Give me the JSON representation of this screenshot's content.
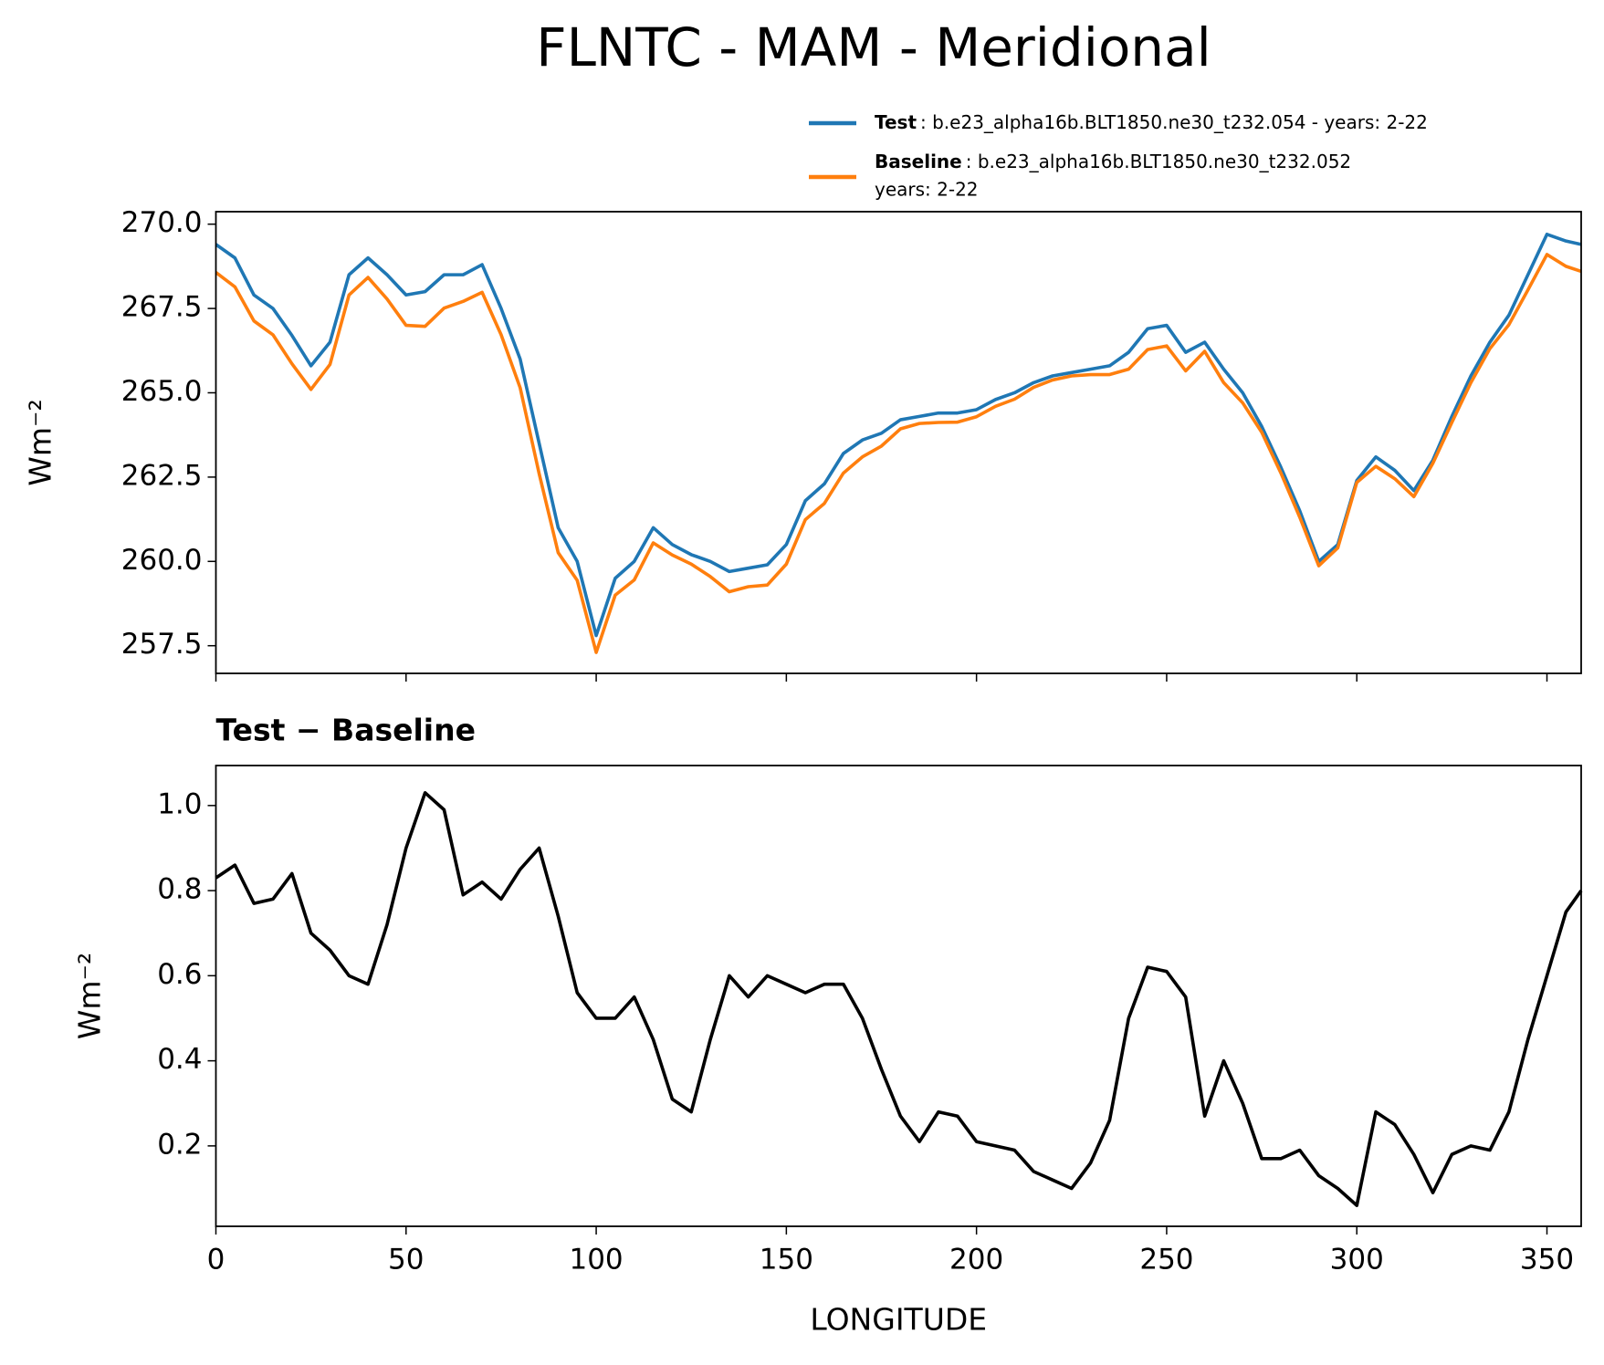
{
  "chart_data": [
    {
      "type": "line",
      "title": "FLNTC - MAM - Meridional",
      "ylabel": "Wm⁻²",
      "x": [
        0,
        5,
        10,
        15,
        20,
        25,
        30,
        35,
        40,
        45,
        50,
        55,
        60,
        65,
        70,
        75,
        80,
        85,
        90,
        95,
        100,
        105,
        110,
        115,
        120,
        125,
        130,
        135,
        140,
        145,
        150,
        155,
        160,
        165,
        170,
        175,
        180,
        185,
        190,
        195,
        200,
        205,
        210,
        215,
        220,
        225,
        230,
        235,
        240,
        245,
        250,
        255,
        260,
        265,
        270,
        275,
        280,
        285,
        290,
        295,
        300,
        305,
        310,
        315,
        320,
        325,
        330,
        335,
        340,
        345,
        350,
        355,
        359
      ],
      "xlim": [
        0,
        359
      ],
      "ylim": [
        256.68,
        270.37
      ],
      "yticks": [
        257.5,
        {
          "value": 260,
          "label": "260.0"
        },
        262.5,
        {
          "value": 265,
          "label": "265.0"
        },
        267.5,
        {
          "value": 270,
          "label": "270.0"
        }
      ],
      "series": [
        {
          "name": "Test",
          "detail": [
            ": b.e23_alpha16b.BLT1850.ne30_t232.054 - years: 2-22"
          ],
          "color": "#1f77b4",
          "values": [
            269.4,
            269.0,
            267.9,
            267.5,
            266.7,
            265.8,
            266.5,
            268.5,
            269.0,
            268.5,
            267.9,
            268.0,
            268.5,
            268.5,
            268.8,
            267.5,
            266.0,
            263.5,
            261.0,
            260.0,
            257.8,
            259.5,
            260.0,
            261.0,
            260.5,
            260.2,
            260.0,
            259.7,
            259.8,
            259.9,
            260.5,
            261.8,
            262.3,
            263.2,
            263.6,
            263.8,
            264.2,
            264.3,
            264.4,
            264.4,
            264.5,
            264.8,
            265.0,
            265.3,
            265.5,
            265.6,
            265.7,
            265.8,
            266.2,
            266.9,
            267.0,
            266.2,
            266.5,
            265.7,
            265.0,
            264.0,
            262.8,
            261.5,
            260.0,
            260.5,
            262.4,
            263.1,
            262.7,
            262.1,
            263.0,
            264.3,
            265.5,
            266.5,
            267.3,
            268.5,
            269.7,
            269.5,
            269.4
          ]
        },
        {
          "name": "Baseline",
          "detail": [
            ": b.e23_alpha16b.BLT1850.ne30_t232.052",
            "years: 2-22"
          ],
          "color": "#ff7f0e",
          "values": [
            268.57,
            268.14,
            267.13,
            266.72,
            265.86,
            265.1,
            265.84,
            267.9,
            268.42,
            267.78,
            267.0,
            266.97,
            267.51,
            267.71,
            267.98,
            266.72,
            265.15,
            262.6,
            260.26,
            259.44,
            257.3,
            259.0,
            259.45,
            260.55,
            260.19,
            259.92,
            259.55,
            259.1,
            259.25,
            259.3,
            259.92,
            261.24,
            261.72,
            262.62,
            263.1,
            263.42,
            263.93,
            264.09,
            264.12,
            264.13,
            264.29,
            264.6,
            264.81,
            265.16,
            265.38,
            265.5,
            265.54,
            265.54,
            265.7,
            266.28,
            266.39,
            265.65,
            266.23,
            265.3,
            264.7,
            263.83,
            262.63,
            261.31,
            259.87,
            260.4,
            262.34,
            262.82,
            262.45,
            261.92,
            262.91,
            264.12,
            265.3,
            266.31,
            267.02,
            268.05,
            269.1,
            268.75,
            268.6
          ]
        }
      ]
    },
    {
      "type": "line",
      "title": "Test − Baseline",
      "ylabel": "Wm⁻²",
      "xlabel": "LONGITUDE",
      "x": [
        0,
        5,
        10,
        15,
        20,
        25,
        30,
        35,
        40,
        45,
        50,
        55,
        60,
        65,
        70,
        75,
        80,
        85,
        90,
        95,
        100,
        105,
        110,
        115,
        120,
        125,
        130,
        135,
        140,
        145,
        150,
        155,
        160,
        165,
        170,
        175,
        180,
        185,
        190,
        195,
        200,
        205,
        210,
        215,
        220,
        225,
        230,
        235,
        240,
        245,
        250,
        255,
        260,
        265,
        270,
        275,
        280,
        285,
        290,
        295,
        300,
        305,
        310,
        315,
        320,
        325,
        330,
        335,
        340,
        345,
        350,
        355,
        359
      ],
      "xlim": [
        0,
        359
      ],
      "ylim": [
        0.011,
        1.094
      ],
      "xticks": [
        0,
        50,
        100,
        150,
        200,
        250,
        300,
        350
      ],
      "yticks": [
        0.2,
        0.4,
        0.6,
        0.8,
        {
          "value": 1,
          "label": "1.0"
        }
      ],
      "series": [
        {
          "color": "#000000",
          "values": [
            0.83,
            0.86,
            0.77,
            0.78,
            0.84,
            0.7,
            0.66,
            0.6,
            0.58,
            0.72,
            0.9,
            1.03,
            0.99,
            0.79,
            0.82,
            0.78,
            0.85,
            0.9,
            0.74,
            0.56,
            0.5,
            0.5,
            0.55,
            0.45,
            0.31,
            0.28,
            0.45,
            0.6,
            0.55,
            0.6,
            0.58,
            0.56,
            0.58,
            0.58,
            0.5,
            0.38,
            0.27,
            0.21,
            0.28,
            0.27,
            0.21,
            0.2,
            0.19,
            0.14,
            0.12,
            0.1,
            0.16,
            0.26,
            0.5,
            0.62,
            0.61,
            0.55,
            0.27,
            0.4,
            0.3,
            0.17,
            0.17,
            0.19,
            0.13,
            0.1,
            0.06,
            0.28,
            0.25,
            0.18,
            0.09,
            0.18,
            0.2,
            0.19,
            0.28,
            0.45,
            0.6,
            0.75,
            0.8
          ]
        }
      ]
    }
  ]
}
